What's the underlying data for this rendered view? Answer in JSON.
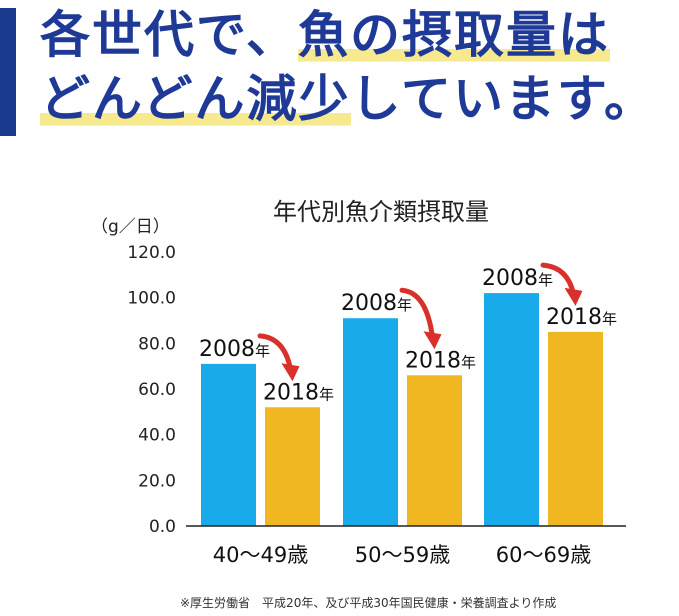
{
  "headline": {
    "line1_prefix": "各世代で、",
    "line1_highlight": "魚の摂取量は",
    "line2_highlight": "どんどん減少",
    "line2_suffix": "しています。"
  },
  "colors": {
    "accent_bar": "#1a3a8f",
    "headline_text": "#1e3a96",
    "highlight": "#f7e98e",
    "bar_2008": "#19aaea",
    "bar_2018": "#f0b722",
    "arrow": "#d9302c"
  },
  "chart_data": {
    "type": "bar",
    "title": "年代別魚介類摂取量",
    "unit_label": "（g／日）",
    "categories": [
      "40～49歳",
      "50～59歳",
      "60～69歳"
    ],
    "series": [
      {
        "name": "2008年",
        "values": [
          71,
          91,
          102
        ]
      },
      {
        "name": "2018年",
        "values": [
          52,
          66,
          85
        ]
      }
    ],
    "ylim": [
      0,
      120
    ],
    "yticks": [
      "120.0",
      "100.0",
      "80.0",
      "60.0",
      "40.0",
      "20.0",
      "0.0"
    ],
    "grid": false,
    "trend_arrows": true
  },
  "source_note": "※厚生労働省　平成20年、及び平成30年国民健康・栄養調査より作成"
}
